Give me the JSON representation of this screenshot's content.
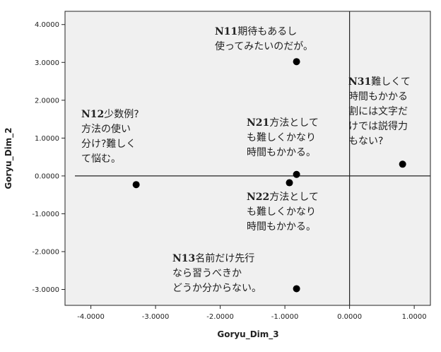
{
  "chart_data": {
    "type": "scatter",
    "title": "",
    "xlabel": "Goryu_Dim_3",
    "ylabel": "Goryu_Dim_2",
    "xlim": [
      -4.4,
      1.25
    ],
    "ylim": [
      -3.42,
      4.35
    ],
    "xticks": [
      -4.0,
      -3.0,
      -2.0,
      -1.0,
      0.0,
      1.0
    ],
    "yticks": [
      4.0,
      3.0,
      2.0,
      1.0,
      0.0,
      -1.0,
      -2.0,
      -3.0
    ],
    "xtick_labels": [
      "-4.0000",
      "-3.0000",
      "-2.0000",
      "-1.0000",
      "0.0000",
      "1.0000"
    ],
    "ytick_labels": [
      "4.0000",
      "3.0000",
      "2.0000",
      "1.0000",
      "0.0000",
      "-1.0000",
      "-2.0000",
      "-3.0000"
    ],
    "reference_lines": {
      "x": 0.0,
      "y": 0.0
    },
    "grid": false,
    "points": [
      {
        "x": -0.82,
        "y": 3.02
      },
      {
        "x": -3.3,
        "y": -0.23
      },
      {
        "x": -0.82,
        "y": 0.04
      },
      {
        "x": -0.93,
        "y": -0.18
      },
      {
        "x": -0.82,
        "y": -2.98
      },
      {
        "x": 0.82,
        "y": 0.31
      }
    ],
    "annotations": [
      {
        "code": "N11",
        "lines": [
          "期待もあるし",
          "使ってみたいのだが。"
        ]
      },
      {
        "code": "N12",
        "lines": [
          "少数例?",
          "方法の使い",
          "分け?難しく",
          "て悩む。"
        ]
      },
      {
        "code": "N21",
        "lines": [
          "方法として",
          "も難しくかなり",
          "時間もかかる。"
        ]
      },
      {
        "code": "N22",
        "lines": [
          "方法として",
          "も難しくかなり",
          "時間もかかる。"
        ]
      },
      {
        "code": "N13",
        "lines": [
          "名前だけ先行",
          "なら習うべきか",
          "どうか分からない。"
        ]
      },
      {
        "code": "N31",
        "lines": [
          "難しくて",
          "時間もかかる",
          "割には文字だ",
          "けでは説得力",
          "もない?"
        ]
      }
    ]
  }
}
